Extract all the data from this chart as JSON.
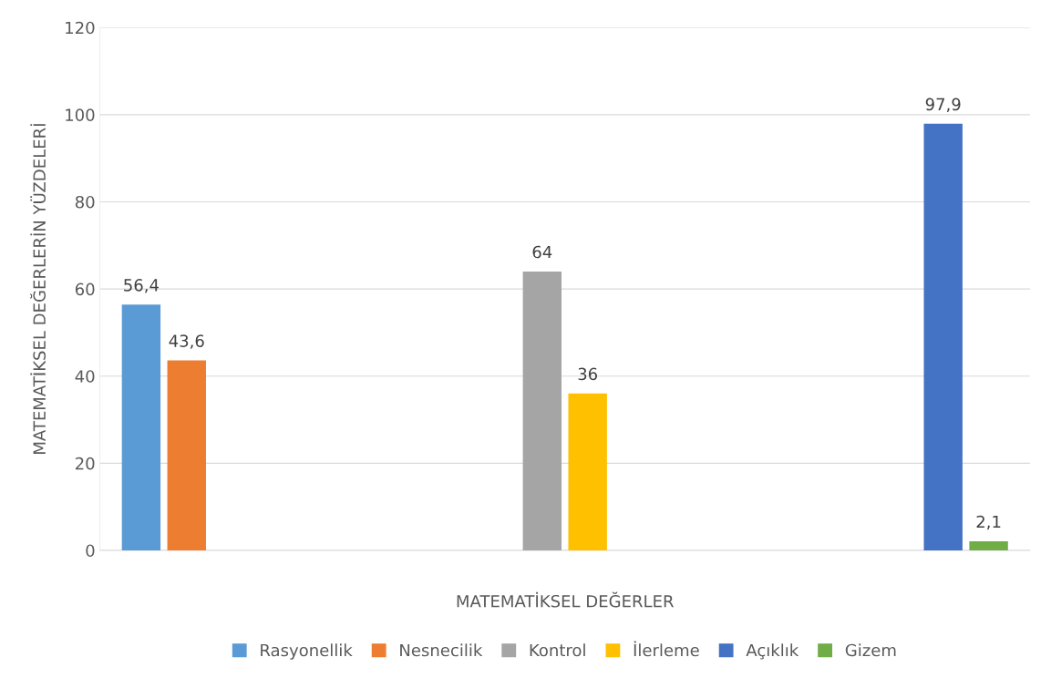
{
  "chart_data": {
    "type": "bar",
    "xlabel": "MATEMATİKSEL DEĞERLER",
    "ylabel": "MATEMATİKSEL DEĞERLERİN YÜZDELERİ",
    "categories": [
      null,
      null,
      null
    ],
    "series": [
      {
        "name": "Rasyonellik",
        "color": "#5b9bd5",
        "values": [
          56.4,
          null,
          null
        ],
        "value_labels": [
          "56,4",
          null,
          null
        ]
      },
      {
        "name": "Nesnecilik",
        "color": "#ed7d31",
        "values": [
          43.6,
          null,
          null
        ],
        "value_labels": [
          "43,6",
          null,
          null
        ]
      },
      {
        "name": "Kontrol",
        "color": "#a5a5a5",
        "values": [
          null,
          64,
          null
        ],
        "value_labels": [
          null,
          "64",
          null
        ]
      },
      {
        "name": "İlerleme",
        "color": "#ffc000",
        "values": [
          null,
          36,
          null
        ],
        "value_labels": [
          null,
          "36",
          null
        ]
      },
      {
        "name": "Açıklık",
        "color": "#4472c4",
        "values": [
          null,
          null,
          97.9
        ],
        "value_labels": [
          null,
          null,
          "97,9"
        ]
      },
      {
        "name": "Gizem",
        "color": "#70ad47",
        "values": [
          null,
          null,
          2.1
        ],
        "value_labels": [
          null,
          null,
          "2,1"
        ]
      }
    ],
    "ylim": [
      0,
      120
    ],
    "yticks": [
      0,
      20,
      40,
      60,
      80,
      100,
      120
    ],
    "grid": "y",
    "legend": "bottom",
    "tick_labels": "y"
  }
}
